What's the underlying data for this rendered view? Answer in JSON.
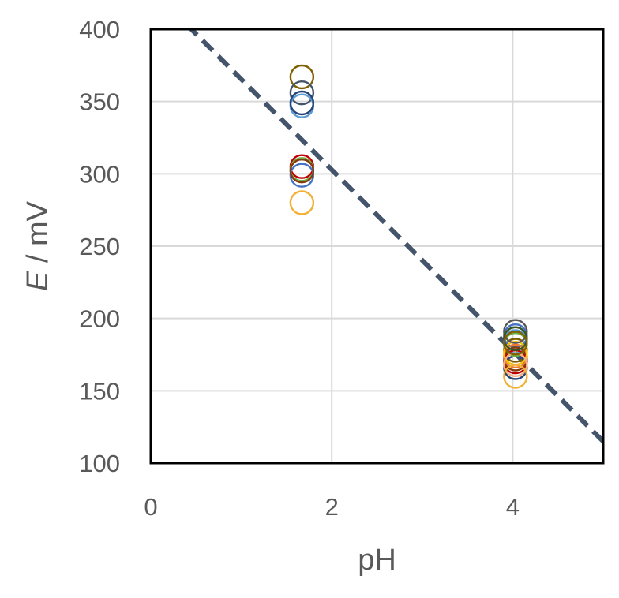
{
  "chart_data": {
    "type": "scatter",
    "title": "",
    "xlabel": "pH",
    "ylabel_italic": "E",
    "ylabel_rest": " / mV",
    "xlim": [
      0,
      5
    ],
    "ylim": [
      100,
      400
    ],
    "xticks": [
      0,
      2,
      4
    ],
    "yticks": [
      100,
      150,
      200,
      250,
      300,
      350,
      400
    ],
    "xtick_labels": [
      "0",
      "2",
      "4"
    ],
    "ytick_labels": [
      "100",
      "150",
      "200",
      "250",
      "300",
      "350",
      "400"
    ],
    "grid": true,
    "legend": "none",
    "series": [
      {
        "color": "#7f6000",
        "points": [
          [
            1.67,
            367
          ],
          [
            4.03,
            178
          ]
        ]
      },
      {
        "color": "#44546a",
        "points": [
          [
            1.67,
            356
          ],
          [
            4.03,
            186
          ]
        ]
      },
      {
        "color": "#5b9bd5",
        "points": [
          [
            1.67,
            347
          ],
          [
            4.03,
            184
          ]
        ]
      },
      {
        "color": "#264478",
        "points": [
          [
            1.67,
            349
          ],
          [
            4.03,
            166
          ]
        ]
      },
      {
        "color": "#c00000",
        "points": [
          [
            1.67,
            305
          ],
          [
            4.03,
            170
          ]
        ]
      },
      {
        "color": "#70ad47",
        "points": [
          [
            1.67,
            303
          ],
          [
            4.03,
            182
          ]
        ]
      },
      {
        "color": "#4472c4",
        "points": [
          [
            1.67,
            299
          ],
          [
            4.03,
            188
          ]
        ]
      },
      {
        "color": "#843c0c",
        "points": [
          [
            1.67,
            302
          ],
          [
            4.03,
            172
          ]
        ]
      },
      {
        "color": "#ed7d31",
        "points": [
          [
            4.03,
            174
          ]
        ]
      },
      {
        "color": "#ffc000",
        "points": [
          [
            4.03,
            176
          ]
        ]
      },
      {
        "color": "#f4b183",
        "points": [
          [
            4.03,
            168
          ]
        ]
      },
      {
        "color": "#f2b134",
        "points": [
          [
            1.67,
            280
          ],
          [
            4.03,
            160
          ]
        ]
      },
      {
        "color": "#595959",
        "points": [
          [
            4.03,
            191
          ]
        ]
      },
      {
        "color": "#375623",
        "points": [
          [
            4.03,
            186
          ]
        ]
      },
      {
        "color": "#806000",
        "points": [
          [
            4.03,
            183
          ]
        ]
      }
    ],
    "reference_line": {
      "style": "dashed",
      "color": "#44546a",
      "points": [
        [
          0.4,
          403
        ],
        [
          5.0,
          115
        ]
      ]
    }
  }
}
